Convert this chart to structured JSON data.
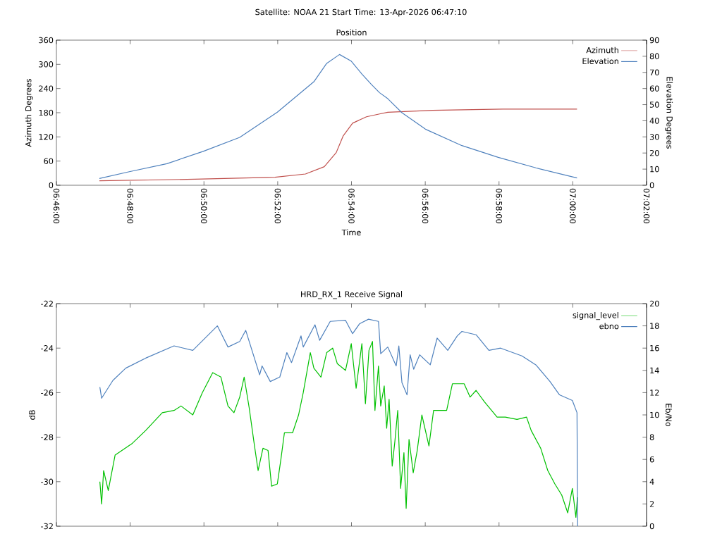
{
  "chart_data": [
    {
      "type": "line",
      "title": "Satellite: NOAA 21    Start Time: 13-Apr-2026 06:47:10",
      "subtitle": "Position",
      "xlabel": "Time",
      "ylabel": "Azimuth Degrees",
      "y2label": "Elevation Degrees",
      "xlim": [
        6.766667,
        7.033333
      ],
      "xticks": [
        {
          "value": 6.766667,
          "label": "06:46:00"
        },
        {
          "value": 6.8,
          "label": "06:48:00"
        },
        {
          "value": 6.833333,
          "label": "06:50:00"
        },
        {
          "value": 6.866667,
          "label": "06:52:00"
        },
        {
          "value": 6.9,
          "label": "06:54:00"
        },
        {
          "value": 6.933333,
          "label": "06:56:00"
        },
        {
          "value": 6.966667,
          "label": "06:58:00"
        },
        {
          "value": 7.0,
          "label": "07:00:00"
        },
        {
          "value": 7.033333,
          "label": "07:02:00"
        }
      ],
      "ylim": [
        0,
        360
      ],
      "yticks": [
        0,
        60,
        120,
        180,
        240,
        300,
        360
      ],
      "y2lim": [
        0,
        90
      ],
      "y2ticks": [
        0,
        10,
        20,
        30,
        40,
        50,
        60,
        70,
        80,
        90
      ],
      "legend": "top right",
      "series": [
        {
          "name": "Azimuth",
          "color": "#c0504d",
          "x": [
            6.7861,
            6.8293,
            6.8654,
            6.8792,
            6.8877,
            6.8931,
            6.8962,
            6.9005,
            6.9068,
            6.9127,
            6.9164,
            6.9366,
            6.9684,
            7.0019
          ],
          "values": [
            11,
            15,
            20,
            28,
            46,
            81,
            122,
            154,
            170,
            177,
            181,
            186,
            189,
            189
          ]
        },
        {
          "name": "Elevation",
          "color": "#4f81bd",
          "axis": "y2",
          "x": [
            6.7861,
            6.7996,
            6.8166,
            6.833,
            6.8495,
            6.8665,
            6.883,
            6.8888,
            6.8946,
            6.8999,
            6.9047,
            6.909,
            6.9127,
            6.9164,
            6.9228,
            6.9334,
            6.9499,
            6.9663,
            6.9833,
            7.0019
          ],
          "values": [
            4.2,
            8.4,
            13.4,
            21.0,
            29.7,
            45.3,
            64.2,
            75.6,
            81.1,
            77.0,
            69.0,
            62.5,
            57.4,
            53.7,
            45.0,
            34.8,
            24.6,
            17.3,
            10.8,
            4.5
          ]
        }
      ]
    },
    {
      "type": "line",
      "title": "HRD_RX_1 Receive Signal",
      "ylabel": "dB",
      "y2label": "Eb/No",
      "xlim": [
        6.766667,
        7.033333
      ],
      "xticks": [
        {
          "value": 6.766667,
          "label": null
        },
        {
          "value": 6.8,
          "label": null
        },
        {
          "value": 6.833333,
          "label": null
        },
        {
          "value": 6.866667,
          "label": null
        },
        {
          "value": 6.9,
          "label": null
        },
        {
          "value": 6.933333,
          "label": null
        },
        {
          "value": 6.966667,
          "label": null
        },
        {
          "value": 7.0,
          "label": null
        },
        {
          "value": 7.033333,
          "label": null
        }
      ],
      "ylim": [
        -32,
        -22
      ],
      "yticks": [
        -32,
        -30,
        -28,
        -26,
        -24,
        -22
      ],
      "y2lim": [
        0,
        20
      ],
      "y2ticks": [
        0,
        2,
        4,
        6,
        8,
        10,
        12,
        14,
        16,
        18,
        20
      ],
      "tick_labels": "y",
      "legend": "top right",
      "series": [
        {
          "name": "signal_level",
          "color": "#00c000",
          "x": [
            6.7863,
            6.7871,
            6.788,
            6.7901,
            6.7932,
            6.8007,
            6.807,
            6.8145,
            6.8198,
            6.823,
            6.8283,
            6.8326,
            6.8373,
            6.841,
            6.8442,
            6.8469,
            6.8495,
            6.8515,
            6.8538,
            6.8559,
            6.8578,
            6.86,
            6.8623,
            6.8639,
            6.8665,
            6.8681,
            6.8697,
            6.8734,
            6.8761,
            6.8782,
            6.8814,
            6.883,
            6.8862,
            6.8888,
            6.8915,
            6.8936,
            6.8973,
            6.8999,
            6.9021,
            6.9047,
            6.9063,
            6.9079,
            6.9095,
            6.9106,
            6.9122,
            6.9132,
            6.9148,
            6.9159,
            6.917,
            6.9184,
            6.9196,
            6.9209,
            6.9222,
            6.9237,
            6.9247,
            6.926,
            6.9279,
            6.9297,
            6.9318,
            6.935,
            6.9371,
            6.943,
            6.9456,
            6.9509,
            6.9536,
            6.9563,
            6.96,
            6.9658,
            6.9695,
            6.9748,
            6.9791,
            6.9812,
            6.9855,
            6.9887,
            6.9919,
            6.995,
            6.9977,
            6.9998,
            7.0014,
            7.0021
          ],
          "values": [
            -30.0,
            -31.0,
            -29.5,
            -30.4,
            -28.8,
            -28.3,
            -27.7,
            -26.9,
            -26.8,
            -26.6,
            -27.0,
            -26.0,
            -25.1,
            -25.3,
            -26.6,
            -26.9,
            -26.2,
            -25.3,
            -26.7,
            -28.2,
            -29.5,
            -28.5,
            -28.6,
            -30.2,
            -30.1,
            -29.0,
            -27.8,
            -27.8,
            -27.0,
            -26.0,
            -24.2,
            -24.9,
            -25.3,
            -24.2,
            -24.0,
            -24.7,
            -25.0,
            -23.8,
            -25.8,
            -23.8,
            -26.5,
            -24.1,
            -23.7,
            -26.8,
            -24.8,
            -26.6,
            -25.7,
            -27.6,
            -26.3,
            -29.3,
            -28.2,
            -26.8,
            -30.3,
            -28.7,
            -31.2,
            -28.1,
            -29.6,
            -28.6,
            -27.0,
            -28.4,
            -26.8,
            -26.8,
            -25.6,
            -25.6,
            -26.2,
            -25.9,
            -26.4,
            -27.1,
            -27.1,
            -27.2,
            -27.1,
            -27.7,
            -28.5,
            -29.5,
            -30.1,
            -30.6,
            -31.4,
            -30.3,
            -31.6,
            -30.7
          ]
        },
        {
          "name": "ebno",
          "color": "#4f81bd",
          "axis": "y2",
          "x": [
            6.7863,
            6.7871,
            6.7922,
            6.798,
            6.807,
            6.8198,
            6.8283,
            6.8394,
            6.8442,
            6.8495,
            6.8522,
            6.8585,
            6.8596,
            6.8633,
            6.8676,
            6.8708,
            6.8729,
            6.8772,
            6.8782,
            6.8835,
            6.8856,
            6.8904,
            6.8973,
            6.9005,
            6.9037,
            6.9077,
            6.9122,
            6.9132,
            6.9164,
            6.9202,
            6.9214,
            6.9228,
            6.9251,
            6.9265,
            6.9281,
            6.9308,
            6.9356,
            6.9387,
            6.9435,
            6.9478,
            6.9499,
            6.9563,
            6.9621,
            6.9674,
            6.977,
            6.9833,
            6.9897,
            6.994,
            6.9998,
            7.0019,
            7.0022
          ],
          "values": [
            12.5,
            11.5,
            13.1,
            14.2,
            15.1,
            16.2,
            15.8,
            18.0,
            16.1,
            16.6,
            17.6,
            13.6,
            14.4,
            13.0,
            13.4,
            15.6,
            14.7,
            17.1,
            16.1,
            18.1,
            16.7,
            18.4,
            18.5,
            17.3,
            18.2,
            18.6,
            18.4,
            15.5,
            16.1,
            14.4,
            16.2,
            12.9,
            11.8,
            15.4,
            14.1,
            15.4,
            14.5,
            16.9,
            15.8,
            17.1,
            17.5,
            17.2,
            15.8,
            16.0,
            15.3,
            14.5,
            13.0,
            11.8,
            11.3,
            10.2,
            0
          ]
        }
      ]
    }
  ]
}
